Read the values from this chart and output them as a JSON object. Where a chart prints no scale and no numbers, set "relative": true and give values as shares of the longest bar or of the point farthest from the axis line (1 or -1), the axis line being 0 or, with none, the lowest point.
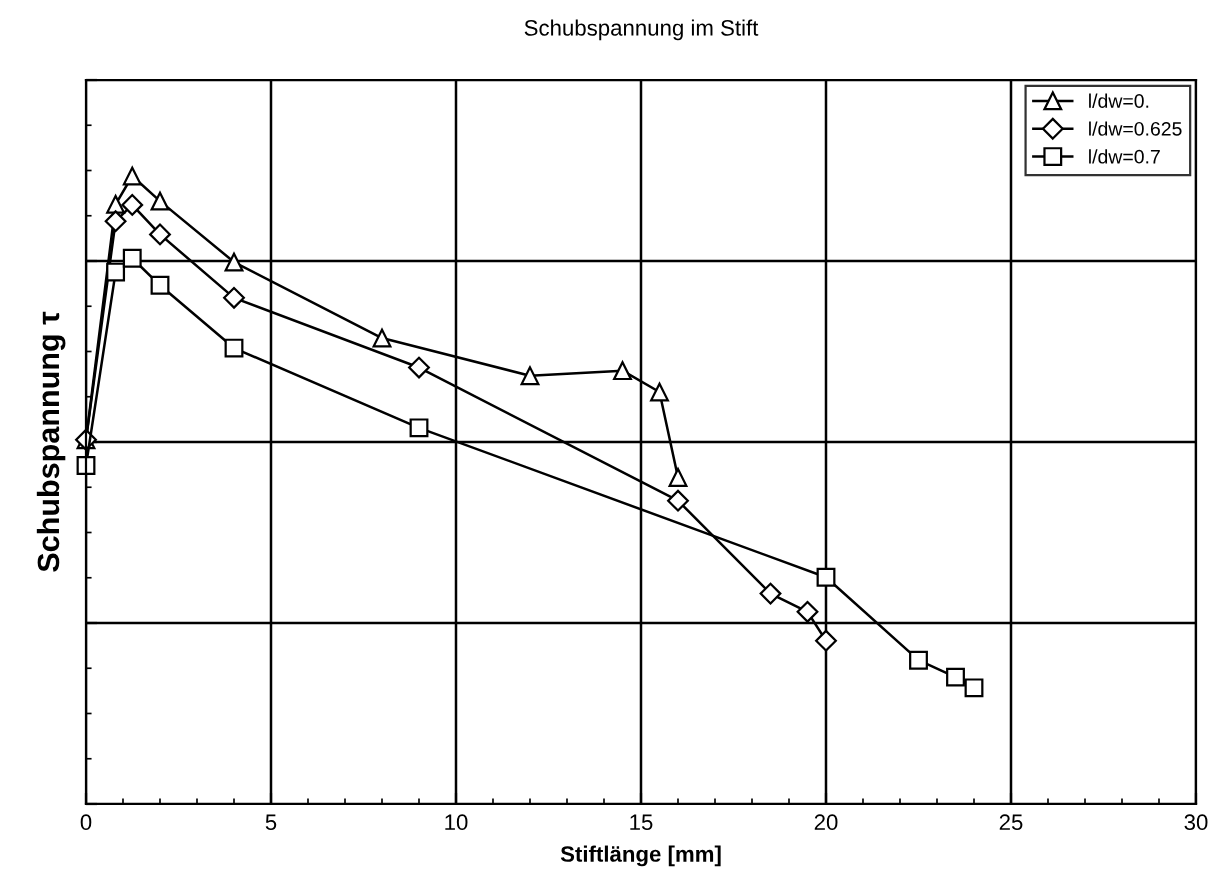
{
  "chart_data": {
    "type": "line",
    "title": "Schubspannung im Stift",
    "xlabel": "Stiftlänge [mm]",
    "ylabel": "Schubspannung τ",
    "relative": true,
    "xlim": [
      0,
      30
    ],
    "xticks": [
      0,
      5,
      10,
      15,
      20,
      25,
      30
    ],
    "grid": true,
    "legend": "top right",
    "line_style": "solid",
    "series": [
      {
        "name": "l/dw=0.",
        "color": "#000000",
        "marker": "triangle",
        "x": [
          0,
          0.8,
          1.25,
          2,
          4,
          8,
          12,
          14.5,
          15.5,
          16
        ],
        "values": [
          0.58,
          0.955,
          1,
          0.96,
          0.863,
          0.742,
          0.682,
          0.69,
          0.656,
          0.52
        ]
      },
      {
        "name": "l/dw=0.625",
        "color": "#000000",
        "marker": "diamond",
        "x": [
          0,
          0.8,
          1.25,
          2,
          4,
          9,
          16,
          18.5,
          19.5,
          20
        ],
        "values": [
          0.58,
          0.928,
          0.954,
          0.907,
          0.806,
          0.695,
          0.483,
          0.335,
          0.306,
          0.26
        ]
      },
      {
        "name": "l/dw=0.7",
        "color": "#000000",
        "marker": "square",
        "x": [
          0,
          0.8,
          1.25,
          2,
          4,
          9,
          20,
          22.5,
          23.5,
          24
        ],
        "values": [
          0.539,
          0.847,
          0.869,
          0.826,
          0.726,
          0.599,
          0.361,
          0.229,
          0.202,
          0.185
        ]
      }
    ]
  }
}
